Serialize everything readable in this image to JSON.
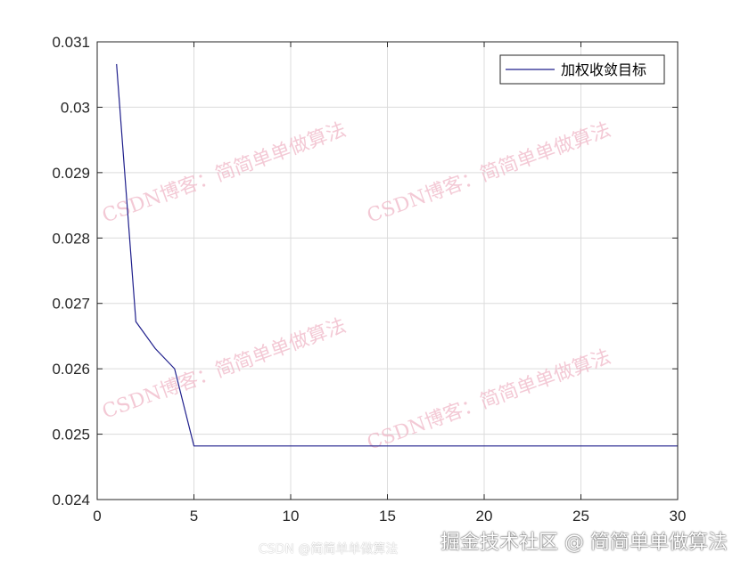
{
  "chart_data": {
    "type": "line",
    "title": "",
    "xlabel": "",
    "ylabel": "",
    "xlim": [
      0,
      30
    ],
    "ylim": [
      0.024,
      0.031
    ],
    "xticks": [
      "0",
      "5",
      "10",
      "15",
      "20",
      "25",
      "30"
    ],
    "yticks": [
      "0.024",
      "0.025",
      "0.026",
      "0.027",
      "0.028",
      "0.029",
      "0.03",
      "0.031"
    ],
    "grid": true,
    "legend_position": "top-right",
    "series": [
      {
        "name": "加权收敛目标",
        "color": "#1f1f8c",
        "x": [
          1,
          2,
          3,
          4,
          5,
          6,
          7,
          8,
          9,
          10,
          11,
          12,
          13,
          14,
          15,
          16,
          17,
          18,
          19,
          20,
          21,
          22,
          23,
          24,
          25,
          26,
          27,
          28,
          29,
          30
        ],
        "y": [
          0.03066,
          0.02672,
          0.02631,
          0.026,
          0.02482,
          0.02482,
          0.02482,
          0.02482,
          0.02482,
          0.02482,
          0.02482,
          0.02482,
          0.02482,
          0.02482,
          0.02482,
          0.02482,
          0.02482,
          0.02482,
          0.02482,
          0.02482,
          0.02482,
          0.02482,
          0.02482,
          0.02482,
          0.02482,
          0.02482,
          0.02482,
          0.02482,
          0.02482,
          0.02482
        ]
      }
    ]
  },
  "watermarks": {
    "csdn": "CSDN博客：简简单单做算法",
    "footer": "掘金技术社区 @ 简简单单做算法",
    "footer_small": "CSDN @简简单单做算法"
  }
}
